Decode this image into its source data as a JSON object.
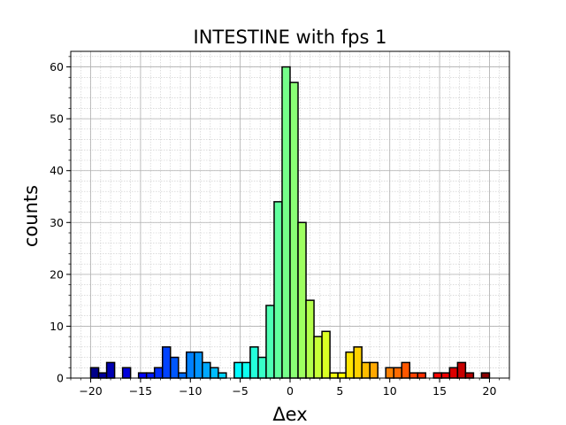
{
  "chart_data": {
    "type": "bar",
    "title": "INTESTINE with fps 1",
    "xlabel": "Δex",
    "ylabel": "counts",
    "xlim": [
      -22,
      22
    ],
    "ylim": [
      0,
      63
    ],
    "bin_width": 0.8,
    "grid": true,
    "colormap": "jet",
    "x_ticks": [
      -20,
      -15,
      -10,
      -5,
      0,
      5,
      10,
      15,
      20
    ],
    "x_tick_labels": [
      "−20",
      "−15",
      "−10",
      "−5",
      "0",
      "5",
      "10",
      "15",
      "20"
    ],
    "y_ticks": [
      0,
      10,
      20,
      30,
      40,
      50,
      60
    ],
    "y_tick_labels": [
      "0",
      "10",
      "20",
      "30",
      "40",
      "50",
      "60"
    ],
    "bins": [
      {
        "x": -19.6,
        "count": 2
      },
      {
        "x": -18.8,
        "count": 1
      },
      {
        "x": -18.0,
        "count": 3
      },
      {
        "x": -16.4,
        "count": 2
      },
      {
        "x": -14.8,
        "count": 1
      },
      {
        "x": -14.0,
        "count": 1
      },
      {
        "x": -13.2,
        "count": 2
      },
      {
        "x": -12.4,
        "count": 6
      },
      {
        "x": -11.6,
        "count": 4
      },
      {
        "x": -10.8,
        "count": 1
      },
      {
        "x": -10.0,
        "count": 5
      },
      {
        "x": -9.2,
        "count": 5
      },
      {
        "x": -8.4,
        "count": 3
      },
      {
        "x": -7.6,
        "count": 2
      },
      {
        "x": -6.8,
        "count": 1
      },
      {
        "x": -5.2,
        "count": 3
      },
      {
        "x": -4.4,
        "count": 3
      },
      {
        "x": -3.6,
        "count": 6
      },
      {
        "x": -2.8,
        "count": 4
      },
      {
        "x": -2.0,
        "count": 14
      },
      {
        "x": -1.2,
        "count": 34
      },
      {
        "x": -0.4,
        "count": 60
      },
      {
        "x": 0.4,
        "count": 57
      },
      {
        "x": 1.2,
        "count": 30
      },
      {
        "x": 2.0,
        "count": 15
      },
      {
        "x": 2.8,
        "count": 8
      },
      {
        "x": 3.6,
        "count": 9
      },
      {
        "x": 4.4,
        "count": 1
      },
      {
        "x": 5.2,
        "count": 1
      },
      {
        "x": 6.0,
        "count": 5
      },
      {
        "x": 6.8,
        "count": 6
      },
      {
        "x": 7.6,
        "count": 3
      },
      {
        "x": 8.4,
        "count": 3
      },
      {
        "x": 10.0,
        "count": 2
      },
      {
        "x": 10.8,
        "count": 2
      },
      {
        "x": 11.6,
        "count": 3
      },
      {
        "x": 12.4,
        "count": 1
      },
      {
        "x": 13.2,
        "count": 1
      },
      {
        "x": 14.8,
        "count": 1
      },
      {
        "x": 15.6,
        "count": 1
      },
      {
        "x": 16.4,
        "count": 2
      },
      {
        "x": 17.2,
        "count": 3
      },
      {
        "x": 18.0,
        "count": 1
      },
      {
        "x": 19.6,
        "count": 1
      }
    ]
  }
}
